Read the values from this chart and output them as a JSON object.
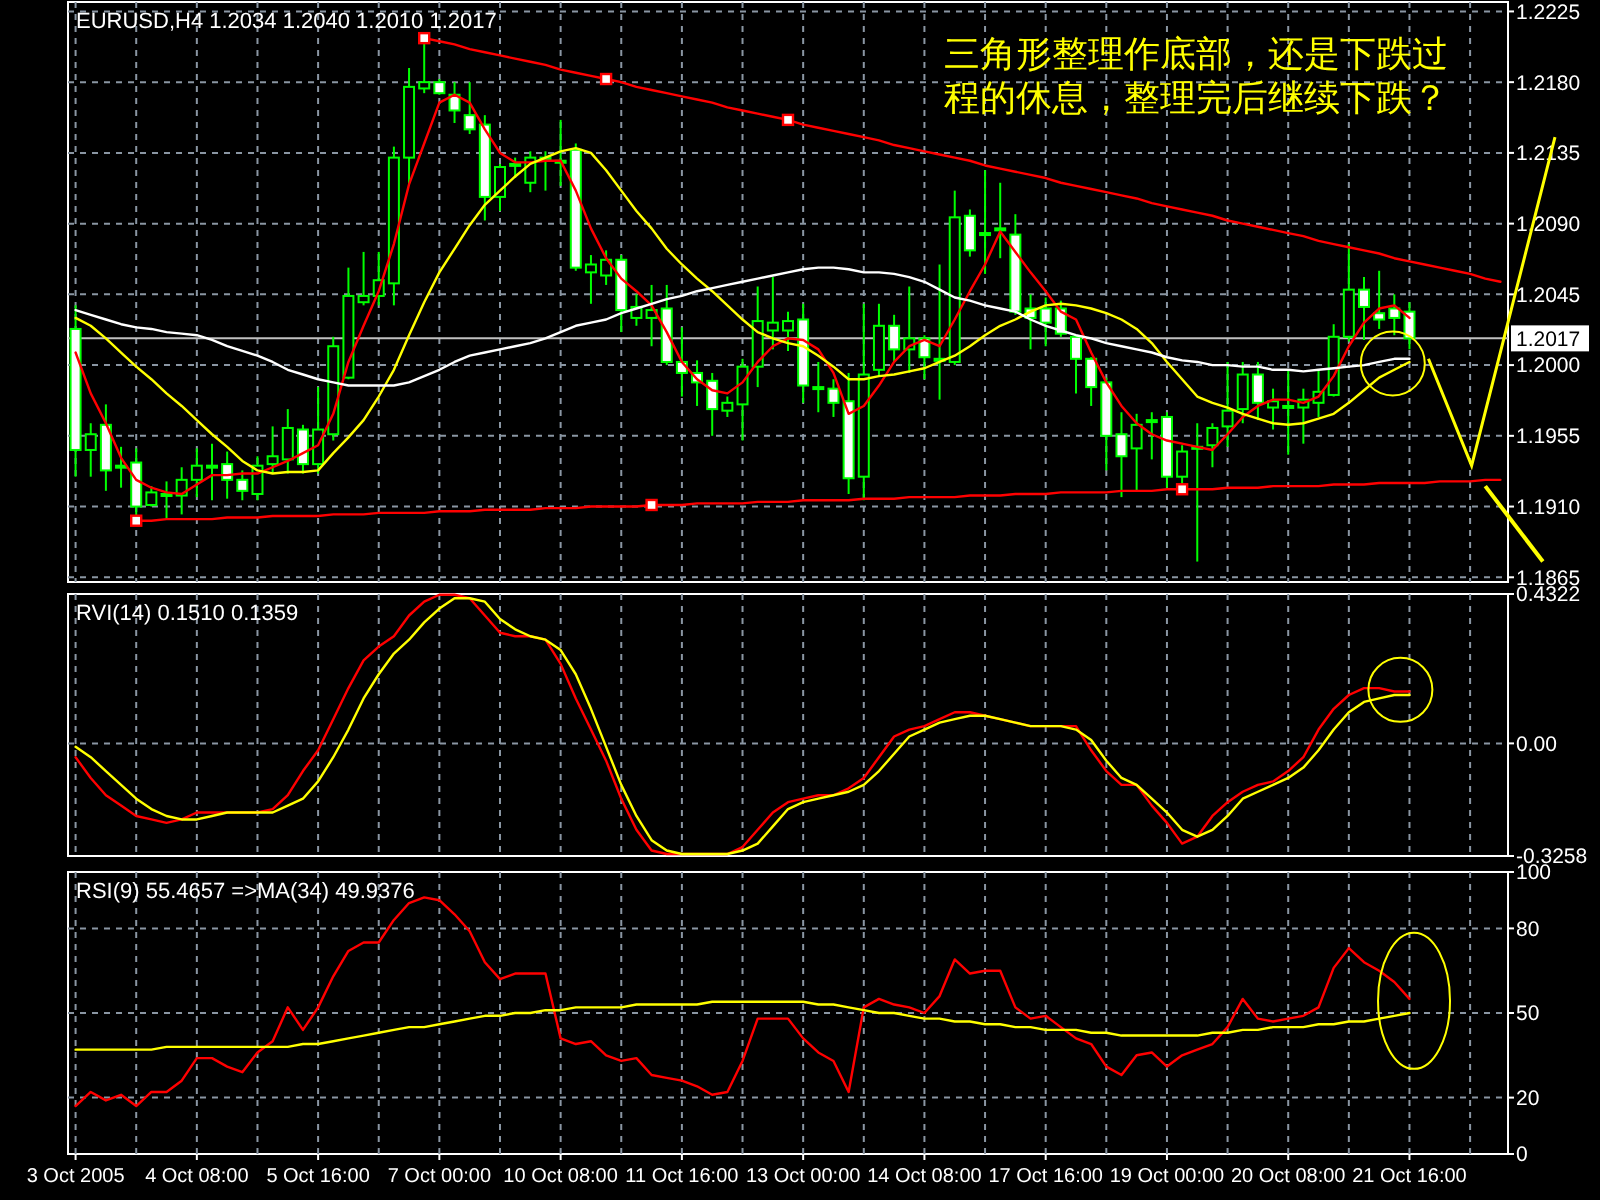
{
  "chart_data": [
    {
      "type": "candlestick",
      "title": "EURUSD,H4 1.2034 1.2040 1.2010 1.2017",
      "annotations": [
        "三角形整理作底部，还是下跌过程的休息，整理完后继续下跌？"
      ],
      "categories": [
        null,
        null,
        null,
        null,
        null,
        null,
        null,
        null,
        null,
        null,
        null,
        null,
        null,
        null,
        null,
        null,
        null,
        null,
        null,
        null,
        null,
        null,
        null,
        null,
        null,
        null,
        null,
        null,
        null,
        null,
        null,
        null,
        null,
        null,
        null,
        null,
        null,
        null,
        null,
        null,
        null,
        null,
        null,
        null,
        null,
        null,
        null,
        null,
        null,
        null,
        null,
        null,
        null,
        null,
        null,
        null,
        null,
        null,
        null,
        null,
        null,
        null,
        null,
        null,
        null,
        null,
        null,
        null,
        null,
        null,
        null,
        null,
        null,
        null,
        null,
        null,
        null,
        null,
        null,
        null,
        null,
        null,
        null,
        null,
        null,
        null,
        null,
        null,
        null,
        null,
        null,
        null,
        null,
        null,
        null
      ],
      "ohlc": [
        [
          1.2023,
          1.2038,
          1.1929,
          1.1946
        ],
        [
          1.1946,
          1.1963,
          1.1929,
          1.1956
        ],
        [
          1.1962,
          1.1975,
          1.192,
          1.1933
        ],
        [
          1.1936,
          1.1948,
          1.1922,
          1.1935
        ],
        [
          1.1938,
          1.1947,
          1.1903,
          1.191
        ],
        [
          1.1911,
          1.1923,
          1.191,
          1.1919
        ],
        [
          1.1918,
          1.1926,
          1.1902,
          1.1918
        ],
        [
          1.1917,
          1.1935,
          1.1905,
          1.1927
        ],
        [
          1.1927,
          1.1947,
          1.1916,
          1.1936
        ],
        [
          1.1936,
          1.195,
          1.1914,
          1.1936
        ],
        [
          1.1937,
          1.1945,
          1.1915,
          1.1927
        ],
        [
          1.1927,
          1.1933,
          1.1914,
          1.192
        ],
        [
          1.1918,
          1.1942,
          1.1914,
          1.1936
        ],
        [
          1.1937,
          1.1961,
          1.1931,
          1.1942
        ],
        [
          1.194,
          1.1972,
          1.1931,
          1.196
        ],
        [
          1.1959,
          1.1962,
          1.1931,
          1.1937
        ],
        [
          1.1937,
          1.1986,
          1.1931,
          1.1959
        ],
        [
          1.1956,
          1.2018,
          1.1952,
          1.2012
        ],
        [
          1.1992,
          1.2062,
          1.1991,
          1.2044
        ],
        [
          1.204,
          1.2072,
          1.2038,
          1.2044
        ],
        [
          1.2044,
          1.2072,
          1.2038,
          1.2054
        ],
        [
          1.2052,
          1.2139,
          1.2038,
          1.2132
        ],
        [
          1.2132,
          1.2189,
          1.2115,
          1.2177
        ],
        [
          1.2176,
          1.2207,
          1.2173,
          1.218
        ],
        [
          1.218,
          1.2182,
          1.2172,
          1.2173
        ],
        [
          1.2172,
          1.218,
          1.2154,
          1.2162
        ],
        [
          1.2159,
          1.218,
          1.2147,
          1.215
        ],
        [
          1.2153,
          1.2159,
          1.2092,
          1.2107
        ],
        [
          1.2107,
          1.2128,
          1.2098,
          1.2126
        ],
        [
          1.2128,
          1.2132,
          1.2119,
          1.2128
        ],
        [
          1.2116,
          1.2136,
          1.211,
          1.2132
        ],
        [
          1.2132,
          1.2136,
          1.2111,
          1.2131
        ],
        [
          1.213,
          1.2156,
          1.2114,
          1.213
        ],
        [
          1.2137,
          1.2141,
          1.206,
          1.2062
        ],
        [
          1.2059,
          1.207,
          1.2039,
          1.2064
        ],
        [
          1.2057,
          1.2073,
          1.2051,
          1.2067
        ],
        [
          1.2067,
          1.207,
          1.2021,
          1.2035
        ],
        [
          1.203,
          1.2045,
          1.2025,
          1.2037
        ],
        [
          1.203,
          1.2051,
          1.2012,
          1.2035
        ],
        [
          1.2036,
          1.2051,
          1.2,
          1.2002
        ],
        [
          1.2002,
          1.2024,
          1.198,
          1.1995
        ],
        [
          1.1995,
          1.2003,
          1.1974,
          1.1989
        ],
        [
          1.199,
          1.1995,
          1.1955,
          1.1972
        ],
        [
          1.1971,
          1.198,
          1.1967,
          1.1976
        ],
        [
          1.1975,
          1.2004,
          1.1952,
          1.1999
        ],
        [
          1.1999,
          1.205,
          1.1986,
          1.2028
        ],
        [
          1.2022,
          1.2056,
          1.201,
          1.2027
        ],
        [
          1.2022,
          1.2034,
          1.2009,
          1.2028
        ],
        [
          1.2029,
          1.2039,
          1.1976,
          1.1987
        ],
        [
          1.1986,
          1.2002,
          1.197,
          1.1986
        ],
        [
          1.1985,
          1.1991,
          1.1967,
          1.1976
        ],
        [
          1.1977,
          1.1995,
          1.1918,
          1.1928
        ],
        [
          1.1929,
          1.2039,
          1.1914,
          1.1994
        ],
        [
          1.1997,
          1.2039,
          1.1993,
          1.2025
        ],
        [
          1.2025,
          1.2032,
          1.2002,
          1.201
        ],
        [
          1.201,
          1.205,
          1.1995,
          1.2017
        ],
        [
          1.2017,
          1.2019,
          1.1991,
          1.2005
        ],
        [
          1.2004,
          1.2064,
          1.1978,
          1.2004
        ],
        [
          1.2002,
          1.2111,
          1.2,
          1.2094
        ],
        [
          1.2095,
          1.2099,
          1.2069,
          1.2073
        ],
        [
          1.2084,
          1.2124,
          1.2058,
          1.2084
        ],
        [
          1.2087,
          1.2116,
          1.2068,
          1.2087
        ],
        [
          1.2083,
          1.2096,
          1.2032,
          1.2034
        ],
        [
          1.2036,
          1.2045,
          1.201,
          1.203
        ],
        [
          1.2036,
          1.2043,
          1.2012,
          1.2027
        ],
        [
          1.2036,
          1.2041,
          1.2018,
          1.202
        ],
        [
          1.2018,
          1.2019,
          1.1982,
          1.2004
        ],
        [
          1.2004,
          1.2005,
          1.1974,
          1.1986
        ],
        [
          1.1989,
          1.1992,
          1.1933,
          1.1955
        ],
        [
          1.1956,
          1.197,
          1.1916,
          1.1942
        ],
        [
          1.1947,
          1.1969,
          1.192,
          1.1962
        ],
        [
          1.1965,
          1.197,
          1.194,
          1.1965
        ],
        [
          1.1967,
          1.197,
          1.1922,
          1.1929
        ],
        [
          1.1929,
          1.1949,
          1.1922,
          1.1945
        ],
        [
          1.1948,
          1.1963,
          1.1875,
          1.1948
        ],
        [
          1.1949,
          1.1963,
          1.1935,
          1.196
        ],
        [
          1.1961,
          1.2002,
          1.1948,
          1.1971
        ],
        [
          1.1972,
          1.2002,
          1.1963,
          1.1994
        ],
        [
          1.1994,
          1.2002,
          1.1965,
          1.1976
        ],
        [
          1.1973,
          1.1985,
          1.1959,
          1.1977
        ],
        [
          1.1974,
          1.1997,
          1.1943,
          1.1974
        ],
        [
          1.1973,
          1.1985,
          1.195,
          1.1978
        ],
        [
          1.1976,
          1.1997,
          1.1967,
          1.1983
        ],
        [
          1.1981,
          1.2026,
          1.198,
          1.2018
        ],
        [
          1.2018,
          1.2077,
          1.2015,
          1.2048
        ],
        [
          1.2048,
          1.2056,
          1.2016,
          1.2037
        ],
        [
          1.2033,
          1.206,
          1.2023,
          1.2029
        ],
        [
          1.2036,
          1.2045,
          1.2019,
          1.203
        ],
        [
          1.2034,
          1.204,
          1.201,
          1.2017
        ],
        null,
        null,
        null,
        null,
        null,
        null
      ],
      "series": [
        {
          "type": "line",
          "color": "#ff0000",
          "values": [
            1.2008,
            1.1982,
            1.1963,
            1.1941,
            1.1927,
            1.1922,
            1.1919,
            1.1918,
            1.1924,
            1.193,
            1.193,
            1.1931,
            1.1931,
            1.1935,
            1.1939,
            1.1944,
            1.1949,
            1.1969,
            1.2002,
            1.2025,
            1.2047,
            1.2077,
            1.2115,
            1.2141,
            1.2167,
            1.2172,
            1.2167,
            1.215,
            1.2135,
            1.2129,
            1.2129,
            1.213,
            1.213,
            1.2111,
            1.2087,
            1.2068,
            1.2055,
            1.2047,
            1.2038,
            1.2021,
            1.2002,
            1.1991,
            1.1984,
            1.1982,
            1.1989,
            1.2002,
            1.2012,
            1.2017,
            1.2016,
            1.201,
            1.1995,
            1.1969,
            1.1974,
            1.1987,
            1.2002,
            1.2012,
            1.2016,
            1.2012,
            1.2029,
            1.2047,
            1.2064,
            1.2085,
            1.2072,
            1.2059,
            1.2047,
            1.2034,
            1.2029,
            1.2008,
            1.1989,
            1.1974,
            1.1963,
            1.1956,
            1.1952,
            1.195,
            1.1948,
            1.1946,
            1.1956,
            1.1967,
            1.1974,
            1.1978,
            1.1978,
            1.1976,
            1.198,
            1.1993,
            1.2012,
            1.2027,
            1.2036,
            1.2038,
            1.203,
            null,
            null,
            null,
            null,
            null,
            null
          ]
        },
        {
          "type": "line",
          "color": "#ffff00",
          "values": [
            1.203,
            1.2025,
            1.2017,
            1.2008,
            1.1999,
            1.1991,
            1.1982,
            1.1974,
            1.1965,
            1.1956,
            1.1948,
            1.1939,
            1.1933,
            1.1931,
            1.1932,
            1.1932,
            1.1933,
            1.1944,
            1.1954,
            1.1965,
            1.198,
            1.1997,
            1.2019,
            1.204,
            1.2059,
            1.2074,
            1.2089,
            1.2102,
            1.2111,
            1.212,
            1.2128,
            1.2132,
            1.2136,
            1.2138,
            1.2135,
            1.2124,
            1.2111,
            1.2098,
            1.2087,
            1.2074,
            1.2064,
            1.2055,
            1.2047,
            1.2038,
            1.2029,
            1.2021,
            1.2017,
            1.2014,
            1.2012,
            1.2006,
            1.1999,
            1.1991,
            1.1991,
            1.1993,
            1.1994,
            1.1996,
            1.1998,
            1.2002,
            1.2006,
            1.2012,
            1.2019,
            1.2025,
            1.2029,
            1.2034,
            1.2038,
            1.2039,
            1.2038,
            1.2036,
            1.2033,
            1.2029,
            1.2023,
            1.2014,
            1.2002,
            1.1991,
            1.198,
            1.1976,
            1.1973,
            1.1969,
            1.1966,
            1.1963,
            1.1962,
            1.1963,
            1.1966,
            1.1969,
            1.1976,
            1.1984,
            1.1992,
            1.1997,
            1.2002,
            null,
            null,
            null,
            null,
            null,
            null
          ]
        },
        {
          "type": "line",
          "color": "#ffffff",
          "values": [
            1.2035,
            1.2032,
            1.2029,
            1.2026,
            1.2024,
            1.2023,
            1.2021,
            1.202,
            1.2019,
            1.2016,
            1.2012,
            1.2009,
            1.2006,
            1.2002,
            1.1997,
            1.1994,
            1.1991,
            1.1989,
            1.1987,
            1.1987,
            1.1987,
            1.1987,
            1.1989,
            1.1993,
            1.1997,
            1.2002,
            1.2006,
            1.2008,
            1.201,
            1.2012,
            1.2014,
            1.2017,
            1.2021,
            1.2025,
            1.2027,
            1.2029,
            1.2033,
            1.2036,
            1.2039,
            1.2042,
            1.2044,
            1.2047,
            1.2049,
            1.2051,
            1.2053,
            1.2055,
            1.2057,
            1.2059,
            1.2061,
            1.2062,
            1.2062,
            1.2061,
            1.2059,
            1.2059,
            1.2058,
            1.2056,
            1.2053,
            1.2048,
            1.2043,
            1.2041,
            1.2038,
            1.2036,
            1.2034,
            1.2029,
            1.2025,
            1.2022,
            1.2019,
            1.2017,
            1.2014,
            1.2012,
            1.201,
            1.2008,
            1.2005,
            1.2003,
            1.2002,
            1.2,
            1.2,
            1.1999,
            1.1999,
            1.1997,
            1.1997,
            1.1996,
            1.1997,
            1.1998,
            1.1999,
            1.2,
            1.2002,
            1.2004,
            1.2004,
            null,
            null,
            null,
            null,
            null,
            null
          ]
        },
        {
          "type": "line",
          "color": "#ff0000",
          "values": [
            null,
            null,
            null,
            null,
            null,
            null,
            null,
            null,
            null,
            null,
            null,
            null,
            null,
            null,
            null,
            null,
            null,
            null,
            null,
            null,
            null,
            null,
            null,
            1.2208,
            1.2206,
            1.2204,
            1.2201,
            1.2199,
            1.2197,
            1.2195,
            1.2193,
            1.2191,
            1.2188,
            1.2186,
            1.2184,
            1.2182,
            1.218,
            1.2177,
            1.2175,
            1.2173,
            1.2171,
            1.2169,
            1.2167,
            1.2164,
            1.2162,
            1.216,
            1.2158,
            1.2156,
            1.2153,
            1.2151,
            1.2149,
            1.2147,
            1.2145,
            1.2143,
            1.214,
            1.2138,
            1.2136,
            1.2134,
            1.2132,
            1.213,
            1.2127,
            1.2125,
            1.2123,
            1.2121,
            1.2119,
            1.2116,
            1.2114,
            1.2112,
            1.211,
            1.2108,
            1.2106,
            1.2103,
            1.2101,
            1.2099,
            1.2097,
            1.2095,
            1.2092,
            1.209,
            1.2088,
            1.2086,
            1.2084,
            1.2082,
            1.2079,
            1.2077,
            1.2075,
            1.2073,
            1.2071,
            1.2068,
            1.2066,
            1.2064,
            1.2062,
            1.206,
            1.2058,
            1.2055,
            1.2053
          ]
        },
        {
          "type": "line",
          "color": "#ff0000",
          "values": [
            null,
            null,
            null,
            null,
            1.1901,
            1.1901,
            1.1902,
            1.1902,
            1.1902,
            1.1902,
            1.1903,
            1.1903,
            1.1903,
            1.1904,
            1.1904,
            1.1904,
            1.1904,
            1.1905,
            1.1905,
            1.1905,
            1.1906,
            1.1906,
            1.1906,
            1.1906,
            1.1907,
            1.1907,
            1.1907,
            1.1908,
            1.1908,
            1.1908,
            1.1908,
            1.1909,
            1.1909,
            1.1909,
            1.191,
            1.191,
            1.191,
            1.191,
            1.1911,
            1.1911,
            1.1911,
            1.1912,
            1.1912,
            1.1912,
            1.1912,
            1.1913,
            1.1913,
            1.1913,
            1.1914,
            1.1914,
            1.1914,
            1.1914,
            1.1915,
            1.1915,
            1.1915,
            1.1916,
            1.1916,
            1.1916,
            1.1916,
            1.1917,
            1.1917,
            1.1917,
            1.1918,
            1.1918,
            1.1918,
            1.1919,
            1.1919,
            1.1919,
            1.1919,
            1.192,
            1.192,
            1.192,
            1.1921,
            1.1921,
            1.1921,
            1.1921,
            1.1922,
            1.1922,
            1.1922,
            1.1923,
            1.1923,
            1.1923,
            1.1923,
            1.1924,
            1.1924,
            1.1924,
            1.1925,
            1.1925,
            1.1925,
            1.1925,
            1.1926,
            1.1926,
            1.1926,
            1.1927,
            1.1927
          ]
        },
        {
          "type": "scatter",
          "color": "#ff0000",
          "marker": "square",
          "values": [
            null,
            null,
            null,
            null,
            1.1901,
            null,
            null,
            null,
            null,
            null,
            null,
            null,
            null,
            null,
            null,
            null,
            null,
            null,
            null,
            null,
            null,
            null,
            null,
            1.2208,
            null,
            null,
            null,
            null,
            null,
            null,
            null,
            null,
            null,
            null,
            null,
            1.2182,
            null,
            null,
            1.1911,
            null,
            null,
            null,
            null,
            null,
            null,
            null,
            null,
            1.2156,
            null,
            null,
            null,
            null,
            null,
            null,
            null,
            null,
            null,
            null,
            null,
            null,
            null,
            null,
            null,
            null,
            null,
            null,
            null,
            null,
            null,
            null,
            null,
            null,
            null,
            1.1921,
            null,
            null,
            null,
            null,
            null,
            null,
            null,
            null,
            null,
            null,
            null,
            null,
            null,
            null,
            null,
            null,
            null,
            null,
            null,
            null,
            null
          ]
        }
      ],
      "ref_lines": [
        {
          "axis": "y",
          "value": 1.2017,
          "label": "1.2017",
          "color": "#c0c0c0"
        }
      ],
      "ylim": [
        1.1862,
        1.2231
      ],
      "yticks": [
        1.2225,
        {
          "value": 1.218,
          "label": "1.2180"
        },
        1.2135,
        {
          "value": 1.209,
          "label": "1.2090"
        },
        1.2045,
        {
          "value": 1.2,
          "label": "1.2000"
        },
        1.1955,
        {
          "value": 1.191,
          "label": "1.1910"
        },
        1.1865
      ],
      "grid": true,
      "tick_labels": "y"
    },
    {
      "type": "line",
      "title": "RVI(14) 0.1510 0.1359",
      "categories": [
        null,
        null,
        null,
        null,
        null,
        null,
        null,
        null,
        null,
        null,
        null,
        null,
        null,
        null,
        null,
        null,
        null,
        null,
        null,
        null,
        null,
        null,
        null,
        null,
        null,
        null,
        null,
        null,
        null,
        null,
        null,
        null,
        null,
        null,
        null,
        null,
        null,
        null,
        null,
        null,
        null,
        null,
        null,
        null,
        null,
        null,
        null,
        null,
        null,
        null,
        null,
        null,
        null,
        null,
        null,
        null,
        null,
        null,
        null,
        null,
        null,
        null,
        null,
        null,
        null,
        null,
        null,
        null,
        null,
        null,
        null,
        null,
        null,
        null,
        null,
        null,
        null,
        null,
        null,
        null,
        null,
        null,
        null,
        null,
        null,
        null,
        null,
        null,
        null,
        null,
        null,
        null,
        null,
        null,
        null
      ],
      "series": [
        {
          "color": "#ff0000",
          "values": [
            -0.04,
            -0.1,
            -0.15,
            -0.18,
            -0.21,
            -0.22,
            -0.23,
            -0.22,
            -0.2,
            -0.2,
            -0.2,
            -0.2,
            -0.2,
            -0.19,
            -0.15,
            -0.08,
            -0.02,
            0.07,
            0.16,
            0.24,
            0.28,
            0.31,
            0.37,
            0.41,
            0.43,
            0.43,
            0.42,
            0.37,
            0.32,
            0.31,
            0.31,
            0.3,
            0.23,
            0.13,
            0.04,
            -0.05,
            -0.16,
            -0.25,
            -0.31,
            -0.32,
            -0.32,
            -0.32,
            -0.32,
            -0.32,
            -0.3,
            -0.25,
            -0.2,
            -0.17,
            -0.16,
            -0.15,
            -0.15,
            -0.13,
            -0.1,
            -0.04,
            0.02,
            0.04,
            0.05,
            0.07,
            0.09,
            0.09,
            0.08,
            0.07,
            0.06,
            0.05,
            0.05,
            0.05,
            0.05,
            -0.02,
            -0.08,
            -0.12,
            -0.12,
            -0.18,
            -0.23,
            -0.29,
            -0.27,
            -0.21,
            -0.17,
            -0.14,
            -0.12,
            -0.11,
            -0.08,
            -0.04,
            0.04,
            0.1,
            0.14,
            0.16,
            0.16,
            0.15,
            0.15,
            null,
            null,
            null,
            null,
            null,
            null
          ]
        },
        {
          "color": "#ffff00",
          "values": [
            -0.01,
            -0.04,
            -0.08,
            -0.12,
            -0.16,
            -0.19,
            -0.21,
            -0.22,
            -0.22,
            -0.21,
            -0.2,
            -0.2,
            -0.2,
            -0.2,
            -0.18,
            -0.16,
            -0.11,
            -0.04,
            0.04,
            0.13,
            0.2,
            0.26,
            0.3,
            0.35,
            0.39,
            0.42,
            0.42,
            0.41,
            0.36,
            0.33,
            0.31,
            0.3,
            0.27,
            0.2,
            0.1,
            -0.01,
            -0.12,
            -0.21,
            -0.28,
            -0.31,
            -0.32,
            -0.32,
            -0.32,
            -0.32,
            -0.31,
            -0.29,
            -0.24,
            -0.19,
            -0.17,
            -0.16,
            -0.15,
            -0.14,
            -0.12,
            -0.08,
            -0.03,
            0.02,
            0.04,
            0.06,
            0.07,
            0.08,
            0.08,
            0.07,
            0.06,
            0.05,
            0.05,
            0.05,
            0.04,
            0.01,
            -0.05,
            -0.1,
            -0.12,
            -0.16,
            -0.2,
            -0.25,
            -0.27,
            -0.25,
            -0.21,
            -0.16,
            -0.14,
            -0.12,
            -0.1,
            -0.07,
            -0.02,
            0.04,
            0.09,
            0.12,
            0.13,
            0.14,
            0.14,
            null,
            null,
            null,
            null,
            null,
            null
          ]
        }
      ],
      "ylim": [
        -0.3258,
        0.4322
      ],
      "yticks": [
        0.4322,
        {
          "value": 0,
          "label": "0.00"
        },
        -0.3258
      ],
      "grid": true,
      "tick_labels": "y"
    },
    {
      "type": "line",
      "title": "RSI(9) 55.4657 =>MA(34) 49.9376",
      "categories": [
        "3 Oct 2005",
        null,
        null,
        null,
        null,
        null,
        null,
        null,
        "4 Oct 08:00",
        null,
        null,
        null,
        null,
        null,
        null,
        null,
        "5 Oct 16:00",
        null,
        null,
        null,
        null,
        null,
        null,
        null,
        "7 Oct 00:00",
        null,
        null,
        null,
        null,
        null,
        null,
        null,
        "10 Oct 08:00",
        null,
        null,
        null,
        null,
        null,
        null,
        null,
        "11 Oct 16:00",
        null,
        null,
        null,
        null,
        null,
        null,
        null,
        "13 Oct 00:00",
        null,
        null,
        null,
        null,
        null,
        null,
        null,
        "14 Oct 08:00",
        null,
        null,
        null,
        null,
        null,
        null,
        null,
        "17 Oct 16:00",
        null,
        null,
        null,
        null,
        null,
        null,
        null,
        "19 Oct 00:00",
        null,
        null,
        null,
        null,
        null,
        null,
        null,
        "20 Oct 08:00",
        null,
        null,
        null,
        null,
        null,
        null,
        null,
        "21 Oct 16:00",
        null,
        null,
        null,
        null,
        null,
        null
      ],
      "series": [
        {
          "color": "#ff0000",
          "values": [
            17,
            22,
            19,
            21,
            17,
            22,
            22,
            26,
            34,
            34,
            31,
            29,
            36,
            40,
            52,
            44,
            52,
            63,
            72,
            75,
            75,
            83,
            89,
            91,
            90,
            85,
            79,
            68,
            62,
            64,
            64,
            64,
            41,
            39,
            40,
            35,
            33,
            34,
            28,
            27,
            26,
            24,
            21,
            22,
            33,
            48,
            48,
            48,
            41,
            36,
            33,
            22,
            52,
            55,
            53,
            52,
            50,
            56,
            69,
            64,
            65,
            65,
            52,
            48,
            49,
            45,
            41,
            39,
            31,
            28,
            35,
            36,
            31,
            35,
            37,
            39,
            45,
            55,
            48,
            47,
            48,
            49,
            52,
            66,
            73,
            68,
            65,
            61,
            55,
            null,
            null,
            null,
            null,
            null,
            null
          ]
        },
        {
          "color": "#ffff00",
          "values": [
            37,
            37,
            37,
            37,
            37,
            37,
            38,
            38,
            38,
            38,
            38,
            38,
            38,
            38,
            38,
            39,
            39,
            40,
            41,
            42,
            43,
            44,
            45,
            45,
            46,
            47,
            48,
            49,
            49,
            50,
            50,
            51,
            51,
            52,
            52,
            52,
            52,
            53,
            53,
            53,
            53,
            53,
            54,
            54,
            54,
            54,
            54,
            54,
            54,
            53,
            53,
            52,
            51,
            50,
            50,
            49,
            48,
            48,
            47,
            47,
            46,
            46,
            45,
            45,
            44,
            44,
            44,
            43,
            43,
            42,
            42,
            42,
            42,
            42,
            42,
            43,
            43,
            44,
            44,
            45,
            45,
            45,
            46,
            46,
            47,
            47,
            48,
            49,
            50,
            null,
            null,
            null,
            null,
            null,
            null
          ]
        }
      ],
      "ylim": [
        0,
        100
      ],
      "yticks": [
        100,
        80,
        50,
        20,
        0
      ],
      "grid": true
    }
  ]
}
